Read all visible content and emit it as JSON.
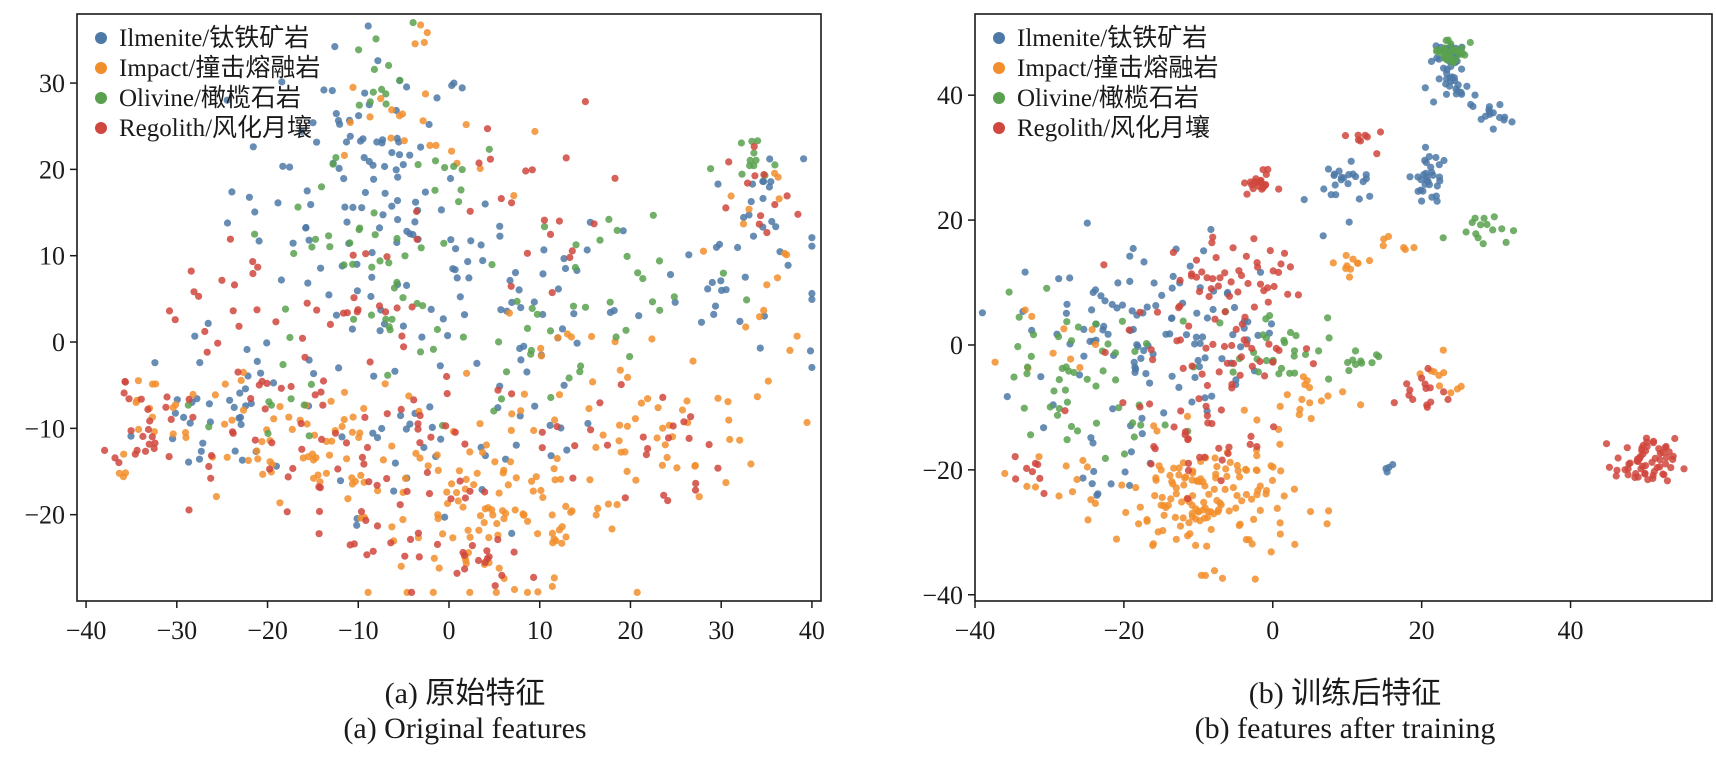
{
  "colors": {
    "Ilmenite": "#4e79a7",
    "Impact": "#f28e2b",
    "Olivine": "#59a14f",
    "Regolith": "#d0473d",
    "axis": "#1a1a1a"
  },
  "captions": {
    "a_cn": "(a) 原始特征",
    "a_en": "(a) Original features",
    "b_cn": "(b) 训练后特征",
    "b_en": "(b) features after training"
  },
  "chart_data": [
    {
      "type": "scatter",
      "xlim": [
        -41,
        41
      ],
      "ylim": [
        -30,
        38
      ],
      "xticks": [
        -40,
        -30,
        -20,
        -10,
        0,
        10,
        20,
        30,
        40
      ],
      "yticks": [
        -20,
        -10,
        0,
        10,
        20,
        30
      ],
      "legend": "top-left",
      "grid": false,
      "series": [
        {
          "name": "Ilmenite/钛铁矿岩",
          "key": "Ilmenite",
          "clusters": [
            [
              -10,
              18,
              7,
              8,
              60
            ],
            [
              -5,
              10,
              6,
              7,
              40
            ],
            [
              5,
              5,
              7,
              6,
              40
            ],
            [
              -22,
              -5,
              6,
              7,
              30
            ],
            [
              -5,
              -12,
              5,
              4,
              25
            ],
            [
              30,
              7,
              6,
              5,
              30
            ],
            [
              35,
              16,
              2,
              3,
              15
            ],
            [
              -8,
              28,
              2,
              5,
              15
            ],
            [
              10,
              -12,
              3,
              3,
              12
            ],
            [
              -27,
              -8,
              3,
              3,
              10
            ]
          ]
        },
        {
          "name": "Impact/撞击熔融岩",
          "key": "Impact",
          "clusters": [
            [
              5,
              -20,
              7,
              5,
              110
            ],
            [
              -20,
              -12,
              6,
              4,
              40
            ],
            [
              25,
              -12,
              6,
              4,
              40
            ],
            [
              -10,
              -12,
              5,
              3,
              30
            ],
            [
              -33,
              -9,
              2,
              3,
              15
            ],
            [
              35,
              10,
              3,
              6,
              18
            ],
            [
              0,
              22,
              3,
              3,
              10
            ],
            [
              -9,
              25,
              3,
              3,
              10
            ],
            [
              -3,
              35,
              1,
              1,
              4
            ],
            [
              13,
              -1,
              4,
              3,
              15
            ]
          ]
        },
        {
          "name": "Olivine/橄榄石岩",
          "key": "Olivine",
          "clusters": [
            [
              -8,
              31,
              2,
              3,
              12
            ],
            [
              33,
              20,
              2,
              2,
              12
            ],
            [
              -5,
              3,
              6,
              7,
              30
            ],
            [
              20,
              8,
              6,
              5,
              20
            ],
            [
              12,
              0,
              5,
              5,
              15
            ],
            [
              0,
              20,
              3,
              3,
              10
            ],
            [
              -12,
              12,
              5,
              5,
              15
            ],
            [
              -20,
              -8,
              3,
              3,
              10
            ]
          ]
        },
        {
          "name": "Regolith/风化月壤",
          "key": "Regolith",
          "clusters": [
            [
              -33,
              -9,
              2,
              3,
              25
            ],
            [
              -20,
              -10,
              6,
              5,
              30
            ],
            [
              -10,
              -20,
              5,
              5,
              30
            ],
            [
              -2,
              -10,
              4,
              4,
              20
            ],
            [
              20,
              -12,
              5,
              4,
              25
            ],
            [
              -12,
              5,
              6,
              5,
              25
            ],
            [
              10,
              15,
              6,
              6,
              20
            ],
            [
              35,
              15,
              2,
              4,
              12
            ],
            [
              -25,
              2,
              4,
              4,
              15
            ],
            [
              5,
              -25,
              4,
              2,
              15
            ]
          ]
        }
      ]
    },
    {
      "type": "scatter",
      "xlim": [
        -40,
        59
      ],
      "ylim": [
        -41,
        53
      ],
      "xticks": [
        -40,
        -20,
        0,
        20,
        40
      ],
      "yticks": [
        -40,
        -20,
        0,
        20,
        40
      ],
      "legend": "top-left",
      "grid": false,
      "series": [
        {
          "name": "Ilmenite/钛铁矿岩",
          "key": "Ilmenite",
          "clusters": [
            [
              -20,
              2,
              7,
              8,
              90
            ],
            [
              -7,
              2,
              4,
              4,
              30
            ],
            [
              24,
              46,
              1.2,
              1.2,
              30
            ],
            [
              25,
              41,
              1.2,
              1.2,
              20
            ],
            [
              29,
              37,
              1.2,
              1.2,
              15
            ],
            [
              21,
              29,
              1.2,
              1.2,
              15
            ],
            [
              21,
              25,
              1.2,
              1.2,
              15
            ],
            [
              11,
              27,
              2,
              1,
              12
            ],
            [
              9,
              24,
              2,
              3,
              12
            ],
            [
              16,
              -20,
              1,
              1,
              4
            ],
            [
              -23,
              -23,
              2,
              2,
              8
            ]
          ]
        },
        {
          "name": "Impact/撞击熔融岩",
          "key": "Impact",
          "clusters": [
            [
              -9,
              -25,
              6,
              5,
              150
            ],
            [
              11,
              13,
              2,
              1,
              10
            ],
            [
              16,
              16,
              1,
              1,
              6
            ],
            [
              22,
              -6,
              3,
              2,
              10
            ],
            [
              5,
              -9,
              3,
              3,
              15
            ],
            [
              -27,
              -20,
              4,
              3,
              10
            ],
            [
              -30,
              0,
              3,
              3,
              10
            ]
          ]
        },
        {
          "name": "Olivine/橄榄石岩",
          "key": "Olivine",
          "clusters": [
            [
              -28,
              -4,
              5,
              5,
              40
            ],
            [
              0,
              0,
              4,
              3,
              30
            ],
            [
              24,
              47,
              1.2,
              1.2,
              30
            ],
            [
              28,
              19,
              2,
              1.2,
              15
            ],
            [
              10,
              -4,
              2,
              2,
              10
            ],
            [
              -20,
              -13,
              3,
              3,
              10
            ]
          ]
        },
        {
          "name": "Regolith/风化月壤",
          "key": "Regolith",
          "clusters": [
            [
              -2,
              26,
              1,
              1,
              20
            ],
            [
              50,
              -19,
              2,
              2,
              60
            ],
            [
              -8,
              0,
              6,
              7,
              60
            ],
            [
              -10,
              -15,
              4,
              4,
              25
            ],
            [
              20,
              -8,
              2,
              2,
              15
            ],
            [
              15,
              33,
              2,
              1,
              8
            ],
            [
              -3,
              12,
              5,
              4,
              20
            ],
            [
              -33,
              -20,
              2,
              2,
              8
            ],
            [
              -8,
              13,
              4,
              4,
              15
            ]
          ]
        }
      ]
    }
  ]
}
